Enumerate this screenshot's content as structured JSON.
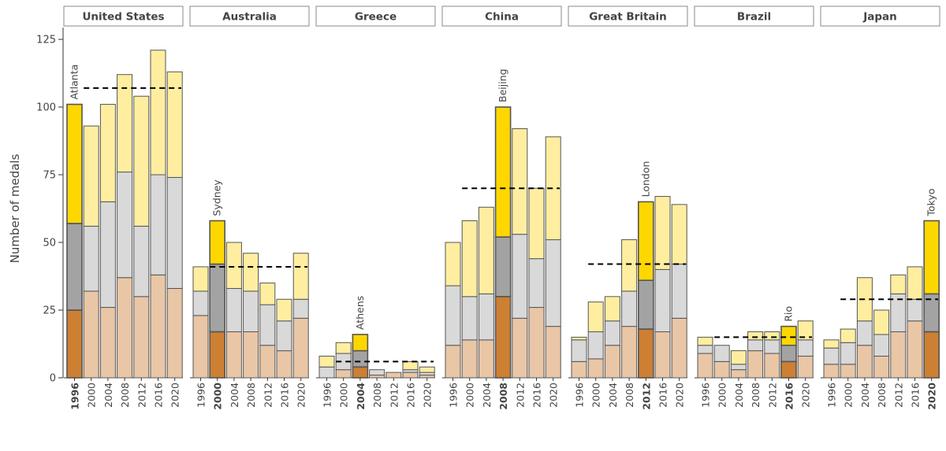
{
  "chart_data": {
    "type": "bar",
    "ylabel": "Number of medals",
    "ylim": [
      0,
      130
    ],
    "yticks": [
      0,
      25,
      50,
      75,
      100,
      125
    ],
    "years": [
      "1996",
      "2000",
      "2004",
      "2008",
      "2012",
      "2016",
      "2020"
    ],
    "stack_order": [
      "bronze",
      "silver",
      "gold"
    ],
    "colors": {
      "bronze": "#cd7f32",
      "silver": "#a3a3a3",
      "gold": "#ffd700",
      "bronze_light": "#e9c6a6",
      "silver_light": "#d9d9d9",
      "gold_light": "#ffeea0",
      "outline": "#555555",
      "reference_line": "#000000"
    },
    "panels": [
      {
        "country": "United States",
        "host_year": "1996",
        "host_city": "Atlanta",
        "bronze": [
          25,
          32,
          26,
          37,
          30,
          38,
          33
        ],
        "silver": [
          32,
          24,
          39,
          39,
          26,
          37,
          41
        ],
        "gold": [
          44,
          37,
          36,
          36,
          48,
          46,
          39
        ],
        "reference": 107
      },
      {
        "country": "Australia",
        "host_year": "2000",
        "host_city": "Sydney",
        "bronze": [
          23,
          17,
          17,
          17,
          12,
          10,
          22
        ],
        "silver": [
          9,
          25,
          16,
          15,
          15,
          11,
          7
        ],
        "gold": [
          9,
          16,
          17,
          14,
          8,
          8,
          17
        ],
        "reference": 41
      },
      {
        "country": "Greece",
        "host_year": "2004",
        "host_city": "Athens",
        "bronze": [
          0,
          3,
          4,
          1,
          2,
          2,
          1
        ],
        "silver": [
          4,
          6,
          6,
          2,
          0,
          1,
          1
        ],
        "gold": [
          4,
          4,
          6,
          0,
          0,
          3,
          2
        ],
        "reference": 6
      },
      {
        "country": "China",
        "host_year": "2008",
        "host_city": "Beijing",
        "bronze": [
          12,
          14,
          14,
          30,
          22,
          26,
          19
        ],
        "silver": [
          22,
          16,
          17,
          22,
          31,
          18,
          32
        ],
        "gold": [
          16,
          28,
          32,
          48,
          39,
          26,
          38
        ],
        "reference": 70
      },
      {
        "country": "Great Britain",
        "host_year": "2012",
        "host_city": "London",
        "bronze": [
          6,
          7,
          12,
          19,
          18,
          17,
          22
        ],
        "silver": [
          8,
          10,
          9,
          13,
          18,
          23,
          20
        ],
        "gold": [
          1,
          11,
          9,
          19,
          29,
          27,
          22
        ],
        "reference": 42
      },
      {
        "country": "Brazil",
        "host_year": "2016",
        "host_city": "Rio",
        "bronze": [
          9,
          6,
          3,
          10,
          9,
          6,
          8
        ],
        "silver": [
          3,
          6,
          2,
          4,
          5,
          6,
          6
        ],
        "gold": [
          3,
          0,
          5,
          3,
          3,
          7,
          7
        ],
        "reference": 15
      },
      {
        "country": "Japan",
        "host_year": "2020",
        "host_city": "Tokyo",
        "bronze": [
          5,
          5,
          12,
          8,
          17,
          21,
          17
        ],
        "silver": [
          6,
          8,
          9,
          8,
          14,
          8,
          14
        ],
        "gold": [
          3,
          5,
          16,
          9,
          7,
          12,
          27
        ],
        "reference": 29
      }
    ]
  }
}
